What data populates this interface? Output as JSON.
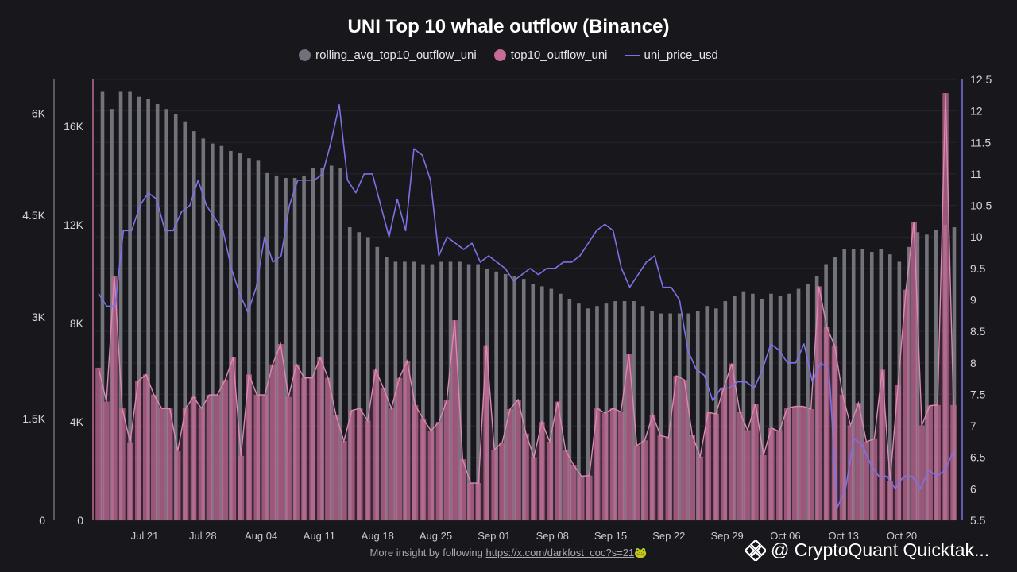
{
  "title": "UNI Top 10 whale outflow (Binance)",
  "legend": [
    {
      "label": "rolling_avg_top10_outflow_uni",
      "color": "#71717b",
      "kind": "dot"
    },
    {
      "label": "top10_outflow_uni",
      "color": "#c46b96",
      "kind": "dot"
    },
    {
      "label": "uni_price_usd",
      "color": "#7b72e6",
      "kind": "line"
    }
  ],
  "footer": {
    "text": "More insight by following ",
    "link": "https://x.com/darkfost_coc?s=21",
    "emoji": "🐸"
  },
  "watermark": "@ CryptoQuant Quicktak...",
  "colors": {
    "rolling": "#73737c",
    "outflow": "#c46b96",
    "price": "#7b72e6",
    "bg": "#18171c"
  },
  "chart_data": {
    "type": "bar",
    "x_tick_labels": [
      "Jul 21",
      "Jul 28",
      "Aug 04",
      "Aug 11",
      "Aug 18",
      "Aug 25",
      "Sep 01",
      "Sep 08",
      "Sep 15",
      "Sep 22",
      "Sep 29",
      "Oct 06",
      "Oct 13",
      "Oct 20"
    ],
    "axes": {
      "y_outflow": {
        "ticks": [
          "0",
          "1.5K",
          "3K",
          "4.5K",
          "6K"
        ],
        "range": [
          0,
          6500
        ]
      },
      "y_rolling": {
        "ticks": [
          "0",
          "4K",
          "8K",
          "12K",
          "16K"
        ],
        "range": [
          0,
          17900
        ]
      },
      "y_price": {
        "ticks": [
          "5.5",
          "6",
          "6.5",
          "7",
          "7.5",
          "8",
          "8.5",
          "9",
          "9.5",
          "10",
          "10.5",
          "11",
          "11.5",
          "12",
          "12.5"
        ],
        "range": [
          5.5,
          12.5
        ]
      }
    },
    "series": [
      {
        "name": "rolling_avg_top10_outflow_uni",
        "axis": "y_rolling",
        "values": [
          17400,
          16700,
          17400,
          17400,
          17200,
          17100,
          16900,
          16700,
          16500,
          16200,
          15800,
          15500,
          15300,
          15200,
          15000,
          14900,
          14700,
          14600,
          14100,
          14000,
          13900,
          13900,
          14000,
          14300,
          14300,
          14400,
          14300,
          11900,
          11700,
          11500,
          11100,
          10700,
          10500,
          10500,
          10500,
          10400,
          10400,
          10500,
          10500,
          10500,
          10400,
          10400,
          10200,
          10100,
          10000,
          9900,
          9800,
          9600,
          9500,
          9400,
          9200,
          9000,
          8800,
          8600,
          8700,
          8800,
          8900,
          8900,
          8900,
          8700,
          8500,
          8400,
          8400,
          8400,
          8400,
          8500,
          8700,
          8600,
          8900,
          9100,
          9300,
          9200,
          9000,
          9200,
          9100,
          9200,
          9400,
          9600,
          9900,
          10400,
          10700,
          11000,
          11000,
          11000,
          10900,
          11000,
          10800,
          10500,
          11100,
          11700,
          11600,
          11800,
          12000,
          11900
        ]
      },
      {
        "name": "top10_outflow_uni",
        "axis": "y_outflow",
        "values": [
          2250,
          1750,
          3600,
          1650,
          1150,
          2050,
          2150,
          1850,
          1650,
          1650,
          1020,
          1650,
          1820,
          1650,
          1850,
          1850,
          2070,
          2400,
          950,
          2150,
          1850,
          1850,
          2300,
          2600,
          1820,
          2300,
          2100,
          2100,
          2400,
          2100,
          1550,
          1170,
          1620,
          1650,
          1470,
          2220,
          1950,
          1650,
          2100,
          2350,
          1700,
          1500,
          1320,
          1450,
          1770,
          2950,
          900,
          550,
          550,
          2580,
          1040,
          1150,
          1640,
          1780,
          1280,
          930,
          1450,
          1160,
          1750,
          1030,
          820,
          650,
          660,
          1650,
          1580,
          1650,
          1600,
          2450,
          1100,
          1180,
          1550,
          1250,
          1220,
          2130,
          2070,
          1260,
          940,
          1590,
          1570,
          1960,
          2310,
          1600,
          1330,
          1720,
          960,
          1360,
          1310,
          1650,
          1680,
          1680,
          1640,
          3450,
          2850,
          2570,
          1850,
          1400,
          1730,
          1160,
          1200,
          2220,
          580,
          2000,
          3400,
          4400,
          1400,
          1690,
          1700,
          6300,
          1700
        ]
      },
      {
        "name": "uni_price_usd",
        "axis": "y_price",
        "values": [
          9.1,
          8.9,
          8.9,
          10.1,
          10.1,
          10.5,
          10.7,
          10.6,
          10.1,
          10.1,
          10.4,
          10.5,
          10.9,
          10.5,
          10.3,
          10.1,
          9.5,
          9.1,
          8.8,
          9.2,
          10.0,
          9.6,
          9.7,
          10.5,
          10.9,
          10.9,
          10.9,
          11.0,
          11.5,
          12.1,
          10.9,
          10.7,
          11.0,
          11.0,
          10.5,
          10.0,
          10.6,
          10.1,
          11.4,
          11.3,
          10.9,
          9.7,
          10.0,
          9.9,
          9.8,
          9.9,
          9.6,
          9.7,
          9.6,
          9.5,
          9.3,
          9.4,
          9.5,
          9.4,
          9.5,
          9.5,
          9.6,
          9.6,
          9.7,
          9.9,
          10.1,
          10.2,
          10.1,
          9.5,
          9.2,
          9.4,
          9.6,
          9.7,
          9.2,
          9.2,
          9.0,
          8.2,
          7.9,
          7.8,
          7.4,
          7.6,
          7.6,
          7.7,
          7.7,
          7.6,
          7.9,
          8.3,
          8.2,
          8.0,
          8.0,
          8.3,
          7.7,
          8.0,
          7.9,
          5.7,
          6.0,
          6.8,
          6.7,
          6.4,
          6.2,
          6.2,
          6.0,
          6.2,
          6.2,
          6.0,
          6.3,
          6.2,
          6.3,
          6.6
        ]
      }
    ]
  }
}
